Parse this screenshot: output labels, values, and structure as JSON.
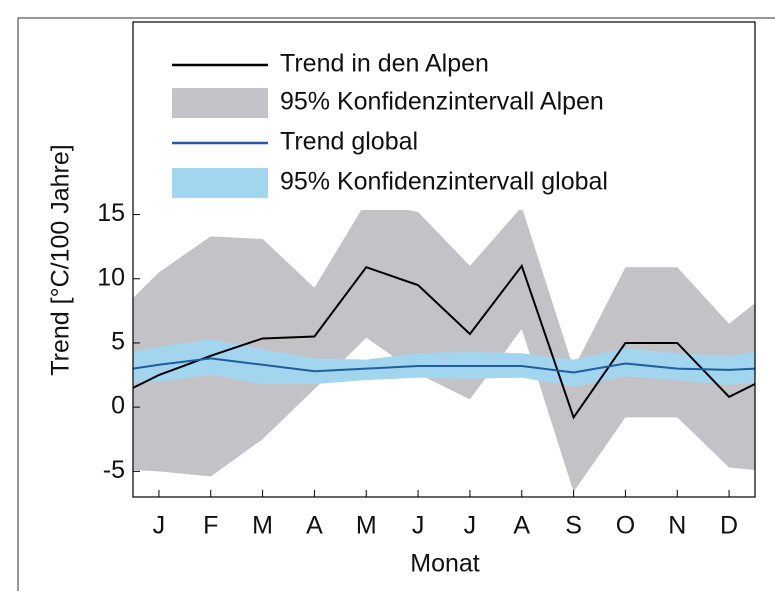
{
  "chart_data": {
    "type": "line",
    "x": [
      0.5,
      1,
      2,
      3,
      4,
      5,
      6,
      7,
      8,
      9,
      10,
      11,
      12,
      12.5
    ],
    "xlim": [
      0.5,
      12.5
    ],
    "xticks": [
      {
        "value": 1,
        "label": "J"
      },
      {
        "value": 2,
        "label": "F"
      },
      {
        "value": 3,
        "label": "M"
      },
      {
        "value": 4,
        "label": "A"
      },
      {
        "value": 5,
        "label": "M"
      },
      {
        "value": 6,
        "label": "J"
      },
      {
        "value": 7,
        "label": "J"
      },
      {
        "value": 8,
        "label": "A"
      },
      {
        "value": 9,
        "label": "S"
      },
      {
        "value": 10,
        "label": "O"
      },
      {
        "value": 11,
        "label": "N"
      },
      {
        "value": 12,
        "label": "D"
      }
    ],
    "ylim": [
      -7,
      30
    ],
    "yticks": [
      -5,
      0,
      5,
      10,
      15
    ],
    "xlabel": "Monat",
    "ylabel": "Trend [°C/100 Jahre]",
    "bands": [
      {
        "name": "95% Konfidenzintervall Alpen",
        "color": "#c3c3c7",
        "upper": [
          8.5,
          10.5,
          13.3,
          13.1,
          9.3,
          16,
          15.2,
          11,
          15.6,
          3,
          10.9,
          10.9,
          6.5,
          8.1
        ],
        "lower": [
          -4.9,
          -5,
          -5.4,
          -2.5,
          1.4,
          5.4,
          2.6,
          0.6,
          6.1,
          -6.6,
          -0.8,
          -0.8,
          -4.7,
          -4.9
        ]
      },
      {
        "name": "95% Konfidenzintervall global",
        "color": "#a3d5ee",
        "upper": [
          4.3,
          4.7,
          5.3,
          4.5,
          3.8,
          3.7,
          4.2,
          4.3,
          4.2,
          3.7,
          4.6,
          4.2,
          4,
          4.3
        ],
        "lower": [
          1.9,
          2,
          2.5,
          1.8,
          1.8,
          2.1,
          2.3,
          2.2,
          2.3,
          1.6,
          2.4,
          2.1,
          1.7,
          1.9
        ]
      }
    ],
    "series": [
      {
        "name": "Trend in den Alpen",
        "color": "#000000",
        "values": [
          1.5,
          2.5,
          4,
          5.35,
          5.5,
          10.9,
          9.5,
          5.7,
          11,
          -0.8,
          5,
          5,
          0.8,
          1.8
        ]
      },
      {
        "name": "Trend global",
        "color": "#1f5f9e",
        "values": [
          3,
          3.3,
          3.8,
          3.3,
          2.8,
          3,
          3.2,
          3.2,
          3.2,
          2.7,
          3.4,
          3,
          2.9,
          3
        ]
      }
    ]
  }
}
